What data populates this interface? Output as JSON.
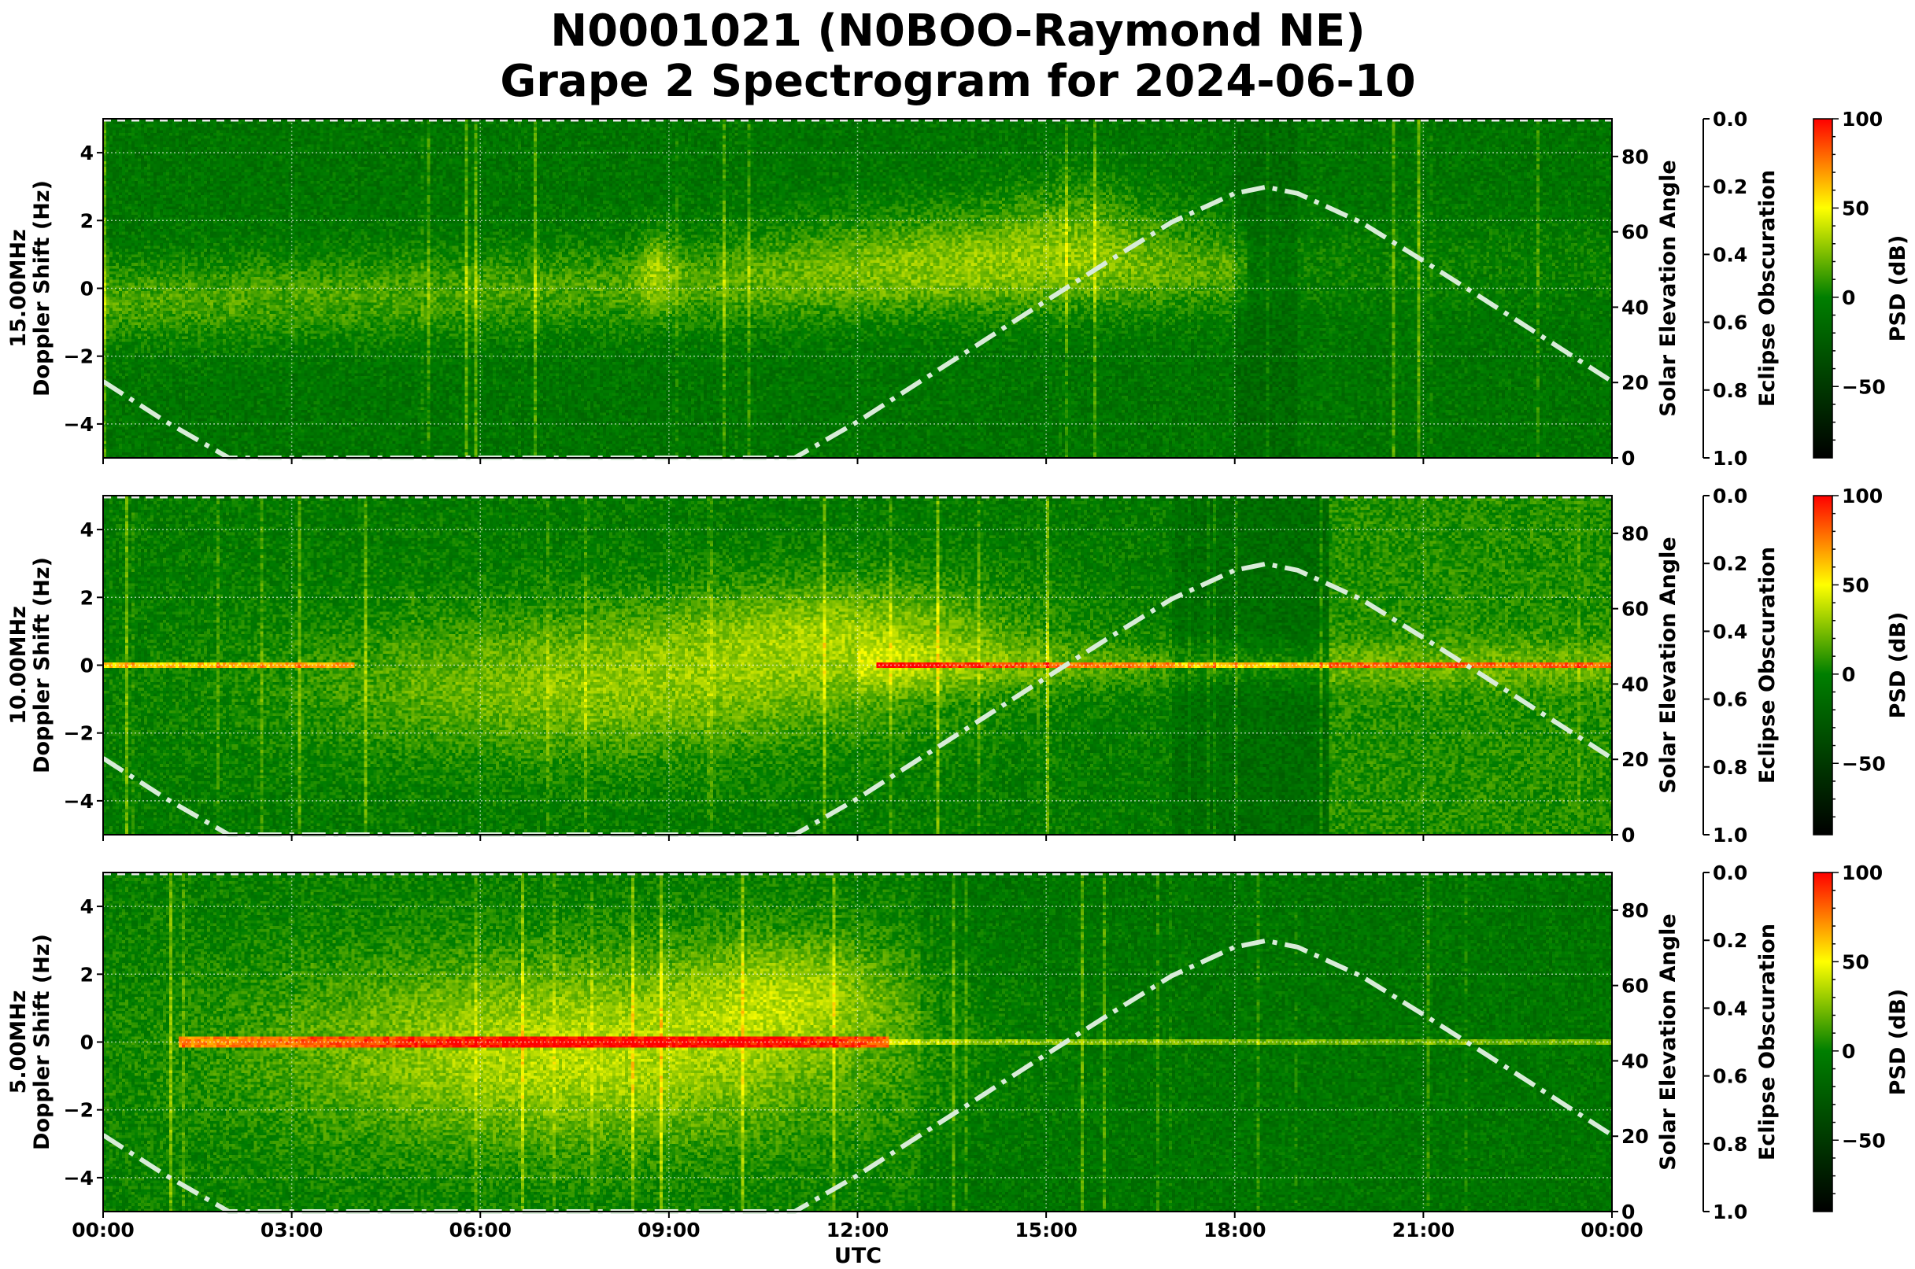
{
  "title_line1": "N0001021 (N0BOO-Raymond NE)",
  "title_line2": "Grape 2 Spectrogram for 2024-06-10",
  "colors": {
    "colormap": [
      "#000000",
      "#007f00",
      "#ffff00",
      "#ff0000"
    ],
    "elevation_line": "#d8ecd8",
    "grid": "#ffffff"
  },
  "chart_data": {
    "type": "heatmap",
    "xlabel": "UTC",
    "x_ticks": [
      "00:00",
      "03:00",
      "06:00",
      "09:00",
      "12:00",
      "15:00",
      "18:00",
      "21:00",
      "00:00"
    ],
    "xlim_hours": [
      0,
      24
    ],
    "grid": true,
    "panels": [
      {
        "label": "15.00MHz",
        "ylabel": "Doppler Shift (Hz)"
      },
      {
        "label": "10.00MHz",
        "ylabel": "Doppler Shift (Hz)"
      },
      {
        "label": "5.00MHz",
        "ylabel": "Doppler Shift (Hz)"
      }
    ],
    "y_ticks": [
      "−4",
      "−2",
      "0",
      "2",
      "4"
    ],
    "ylim": [
      -5,
      5
    ],
    "elevation_axis": {
      "label": "Solar Elevation Angle",
      "ticks": [
        "0",
        "20",
        "40",
        "60",
        "80"
      ],
      "ylim": [
        0,
        90
      ]
    },
    "obscuration_axis": {
      "label": "Eclipse Obscuration",
      "ticks": [
        "0.0",
        "0.2",
        "0.4",
        "0.6",
        "0.8",
        "1.0"
      ],
      "ylim": [
        0,
        1
      ],
      "inverted": true
    },
    "colorbar": {
      "label": "PSD (dB)",
      "ticks": [
        "−50",
        "0",
        "50",
        "100"
      ],
      "range": [
        -90,
        100
      ]
    },
    "solar_elevation": {
      "hours": [
        0,
        1,
        2,
        3,
        4,
        5,
        6,
        7,
        8,
        9,
        10,
        11,
        12,
        13,
        14,
        15,
        16,
        17,
        18,
        18.5,
        19,
        20,
        21,
        22,
        23,
        24
      ],
      "degrees": [
        20.3,
        9.6,
        0,
        0,
        0,
        0,
        0,
        0,
        0,
        0,
        0,
        0,
        9.6,
        20.3,
        31.0,
        41.7,
        52.3,
        62.6,
        70.2,
        71.9,
        70.2,
        62.6,
        52.3,
        41.7,
        31.0,
        20.3
      ]
    },
    "eclipse_obscuration": 0
  }
}
